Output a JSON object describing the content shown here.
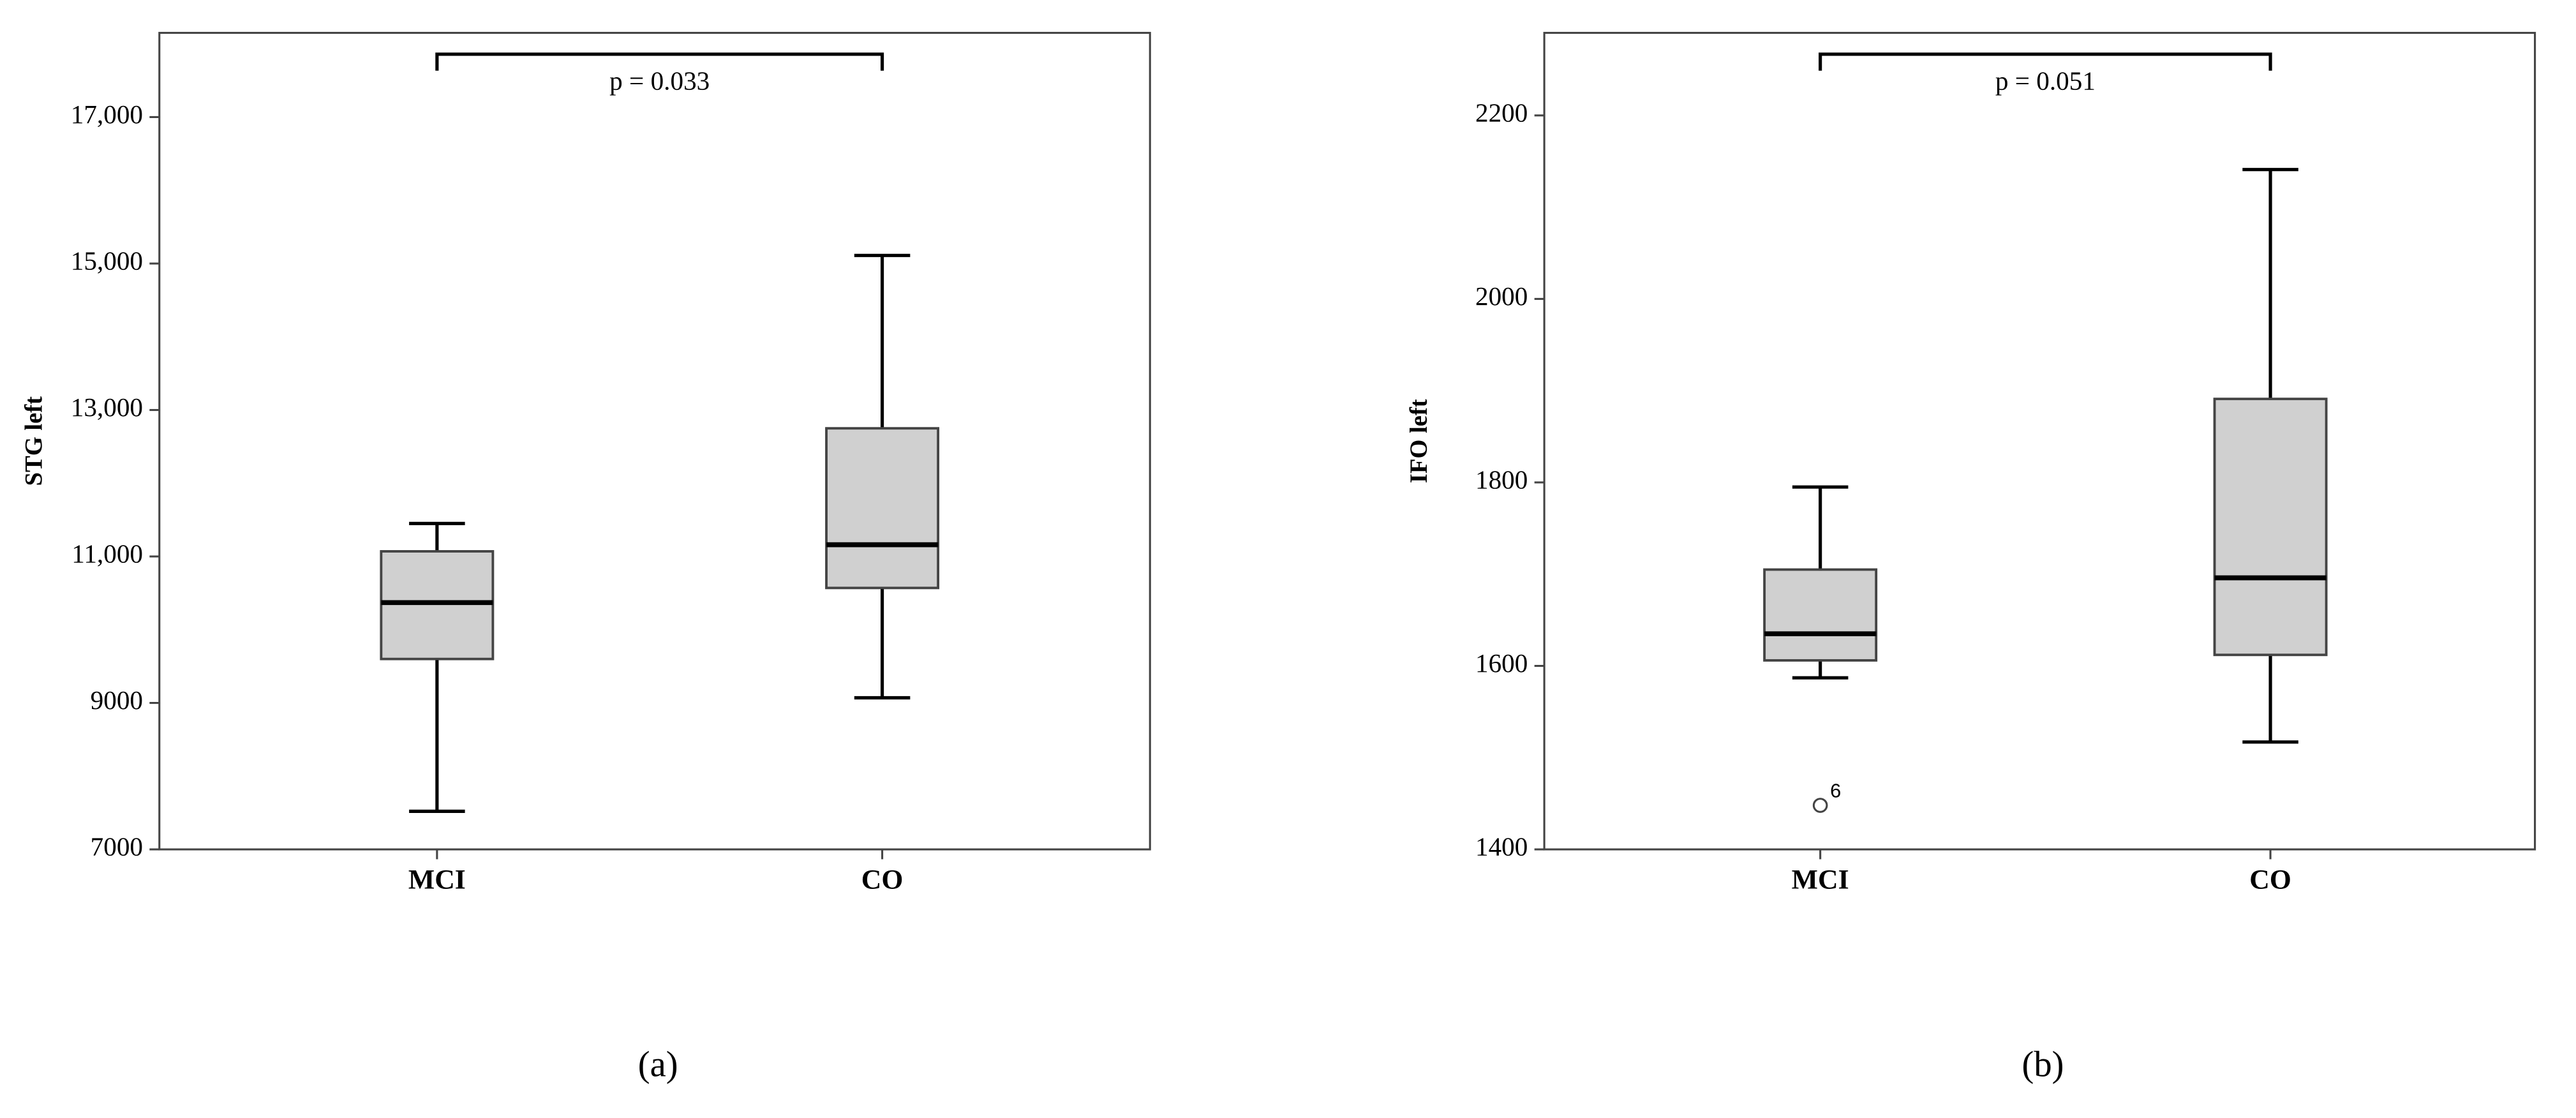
{
  "chart_data": [
    {
      "type": "box",
      "caption": "(a)",
      "ylabel": "STG left",
      "annotation": "p = 0.033",
      "categories": [
        "MCI",
        "CO"
      ],
      "boxes": [
        {
          "min": 7520,
          "q1": 9600,
          "median": 10370,
          "q3": 11070,
          "max": 11450
        },
        {
          "min": 9070,
          "q1": 10570,
          "median": 11160,
          "q3": 12750,
          "max": 15110
        }
      ],
      "outliers": [],
      "color": "#d0d0d0",
      "ylim": [
        7000,
        18150
      ],
      "yticks": [
        7000,
        9000,
        {
          "value": 11000,
          "label": "11,000"
        },
        {
          "value": 13000,
          "label": "13,000"
        },
        {
          "value": 15000,
          "label": "15,000"
        },
        {
          "value": 17000,
          "label": "17,000"
        }
      ]
    },
    {
      "type": "box",
      "caption": "(b)",
      "ylabel": "IFO left",
      "annotation": "p = 0.051",
      "categories": [
        "MCI",
        "CO"
      ],
      "boxes": [
        {
          "min": 1587,
          "q1": 1606,
          "median": 1635,
          "q3": 1705,
          "max": 1795
        },
        {
          "min": 1517,
          "q1": 1612,
          "median": 1696,
          "q3": 1891,
          "max": 2141
        }
      ],
      "outliers": [
        {
          "category": "MCI",
          "value": 1448,
          "label": "6"
        }
      ],
      "color": "#d0d0d0",
      "ylim": [
        1400,
        2290
      ],
      "yticks": [
        1400,
        1600,
        1800,
        2000,
        2200
      ]
    }
  ]
}
